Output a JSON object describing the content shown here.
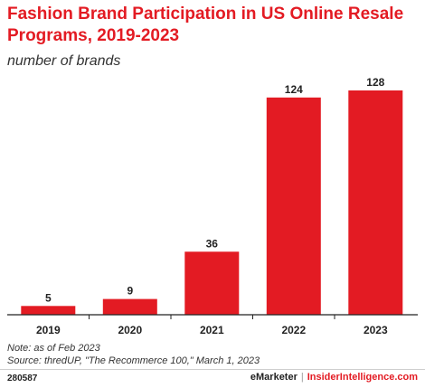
{
  "header": {
    "title": "Fashion Brand Participation in US Online Resale Programs, 2019-2023",
    "subtitle": "number of brands"
  },
  "footer": {
    "note": "Note: as of Feb 2023",
    "source": "Source: thredUP, \"The Recommerce 100,\" March 1, 2023",
    "chart_id": "280587",
    "brand_emarketer": "eMarketer",
    "brand_separator": "|",
    "brand_insider": "InsiderIntelligence.com"
  },
  "colors": {
    "bar": "#e31b23",
    "title": "#e31b23",
    "axis": "#222222"
  },
  "chart_data": {
    "type": "bar",
    "title": "Fashion Brand Participation in US Online Resale Programs, 2019-2023",
    "subtitle": "number of brands",
    "xlabel": "",
    "ylabel": "",
    "categories": [
      "2019",
      "2020",
      "2021",
      "2022",
      "2023"
    ],
    "values": [
      5,
      9,
      36,
      124,
      128
    ],
    "data_labels": [
      "5",
      "9",
      "36",
      "124",
      "128"
    ],
    "ylim": [
      0,
      128
    ],
    "grid": false,
    "legend": "none"
  }
}
